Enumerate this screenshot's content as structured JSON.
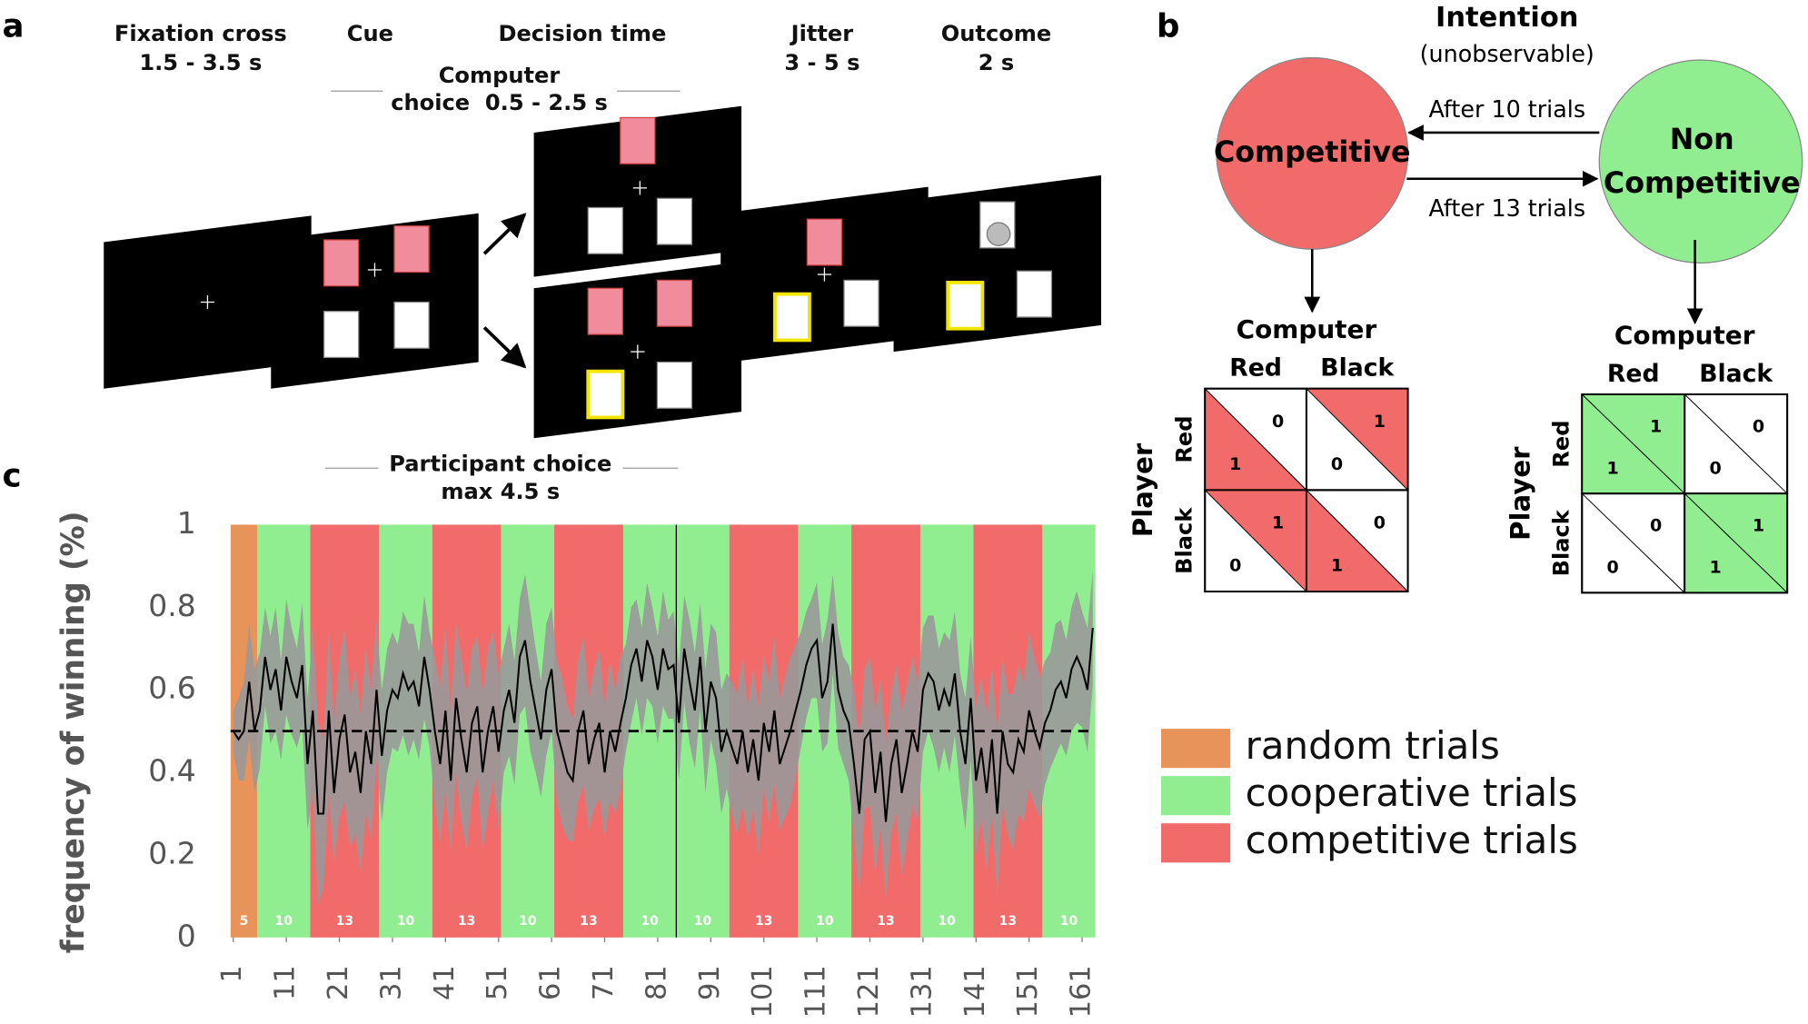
{
  "panel_a": {
    "label": "a",
    "phases": [
      {
        "name": "Fixation cross",
        "duration": "1.5 - 3.5 s"
      },
      {
        "name": "Cue"
      },
      {
        "name": "Decision time"
      },
      {
        "name": "Jitter",
        "duration": "3 - 5 s"
      },
      {
        "name": "Outcome",
        "duration": "2 s"
      }
    ],
    "computer_choice": [
      "Computer",
      "choice  0.5 - 2.5 s"
    ],
    "participant_choice": [
      "Participant choice",
      "max 4.5 s"
    ]
  },
  "panel_b": {
    "label": "b",
    "title": "Intention",
    "subtitle": "(unobservable)",
    "states": [
      [
        "Competitive"
      ],
      [
        "Non",
        "Competitive"
      ]
    ],
    "transitions": [
      "After 10 trials",
      "After 13 trials"
    ],
    "matrices": [
      {
        "col_title": "Computer",
        "cols": [
          "Red",
          "Black"
        ],
        "row_title": "Player",
        "rows": [
          "Red",
          "Black"
        ],
        "color": "#f26b6b",
        "cells": [
          [
            [
              0,
              1
            ],
            [
              1,
              0
            ]
          ],
          [
            [
              1,
              0
            ],
            [
              0,
              1
            ]
          ]
        ]
      },
      {
        "col_title": "Computer",
        "cols": [
          "Red",
          "Black"
        ],
        "row_title": "Player",
        "rows": [
          "Red",
          "Black"
        ],
        "color": "#90ee90",
        "cells": [
          [
            [
              1,
              1
            ],
            [
              0,
              0
            ]
          ],
          [
            [
              0,
              0
            ],
            [
              1,
              1
            ]
          ]
        ]
      }
    ]
  },
  "chart_data": {
    "type": "line",
    "panel_label": "c",
    "y_label": "frequency of winning (%)",
    "color": "#000000",
    "band_color": "#999999",
    "reference": 0.5,
    "legend": [
      {
        "name": "random trials",
        "color": "#e8935a"
      },
      {
        "name": "cooperative trials",
        "color": "#90ee90"
      },
      {
        "name": "competitive trials",
        "color": "#f26b6b"
      }
    ],
    "blocks": {
      "counts": [
        5,
        10,
        13,
        10,
        13,
        10,
        13,
        10,
        10,
        13,
        10,
        13,
        10,
        13,
        10
      ],
      "kinds": [
        0,
        1,
        2,
        1,
        2,
        1,
        2,
        1,
        1,
        2,
        1,
        2,
        1,
        2,
        1
      ]
    },
    "xlim": [
      0.5,
      163.5
    ],
    "xticks": [
      1,
      11,
      21,
      31,
      41,
      51,
      61,
      71,
      81,
      91,
      101,
      111,
      121,
      131,
      141,
      151,
      161
    ],
    "ylim": [
      0,
      1
    ],
    "yticks": [
      0,
      0.2,
      0.4,
      0.6,
      0.8,
      1
    ],
    "x": [
      1,
      2,
      3,
      4,
      5,
      6,
      7,
      8,
      9,
      10,
      11,
      12,
      13,
      14,
      15,
      16,
      17,
      18,
      19,
      20,
      21,
      22,
      23,
      24,
      25,
      26,
      27,
      28,
      29,
      30,
      31,
      32,
      33,
      34,
      35,
      36,
      37,
      38,
      39,
      40,
      41,
      42,
      43,
      44,
      45,
      46,
      47,
      48,
      49,
      50,
      51,
      52,
      53,
      54,
      55,
      56,
      57,
      58,
      59,
      60,
      61,
      62,
      63,
      64,
      65,
      66,
      67,
      68,
      69,
      70,
      71,
      72,
      73,
      74,
      75,
      76,
      77,
      78,
      79,
      80,
      81,
      82,
      83,
      84,
      85,
      86,
      87,
      88,
      89,
      90,
      91,
      92,
      93,
      94,
      95,
      96,
      97,
      98,
      99,
      100,
      101,
      102,
      103,
      104,
      105,
      106,
      107,
      108,
      109,
      110,
      111,
      112,
      113,
      114,
      115,
      116,
      117,
      118,
      119,
      120,
      121,
      122,
      123,
      124,
      125,
      126,
      127,
      128,
      129,
      130,
      131,
      132,
      133,
      134,
      135,
      136,
      137,
      138,
      139,
      140,
      141,
      142,
      143,
      144,
      145,
      146,
      147,
      148,
      149,
      150,
      151,
      152,
      153,
      154,
      155,
      156,
      157,
      158,
      159,
      160,
      161,
      162,
      163
    ],
    "values": [
      0.5,
      0.48,
      0.5,
      0.62,
      0.5,
      0.55,
      0.68,
      0.6,
      0.65,
      0.55,
      0.68,
      0.62,
      0.58,
      0.66,
      0.42,
      0.55,
      0.3,
      0.3,
      0.55,
      0.35,
      0.48,
      0.54,
      0.4,
      0.45,
      0.35,
      0.5,
      0.42,
      0.6,
      0.44,
      0.55,
      0.6,
      0.58,
      0.64,
      0.6,
      0.62,
      0.56,
      0.68,
      0.6,
      0.5,
      0.42,
      0.55,
      0.38,
      0.58,
      0.48,
      0.4,
      0.52,
      0.56,
      0.4,
      0.5,
      0.56,
      0.45,
      0.55,
      0.6,
      0.52,
      0.68,
      0.72,
      0.62,
      0.55,
      0.48,
      0.6,
      0.65,
      0.5,
      0.45,
      0.4,
      0.38,
      0.5,
      0.55,
      0.42,
      0.48,
      0.52,
      0.4,
      0.5,
      0.45,
      0.52,
      0.58,
      0.66,
      0.7,
      0.62,
      0.72,
      0.68,
      0.6,
      0.7,
      0.65,
      0.66,
      0.52,
      0.7,
      0.62,
      0.55,
      0.68,
      0.5,
      0.62,
      0.58,
      0.45,
      0.5,
      0.46,
      0.42,
      0.5,
      0.4,
      0.48,
      0.38,
      0.52,
      0.45,
      0.55,
      0.42,
      0.46,
      0.5,
      0.55,
      0.6,
      0.66,
      0.7,
      0.72,
      0.58,
      0.62,
      0.76,
      0.6,
      0.55,
      0.52,
      0.42,
      0.3,
      0.48,
      0.5,
      0.35,
      0.45,
      0.28,
      0.42,
      0.48,
      0.35,
      0.42,
      0.5,
      0.45,
      0.6,
      0.64,
      0.62,
      0.55,
      0.6,
      0.56,
      0.64,
      0.5,
      0.42,
      0.58,
      0.38,
      0.46,
      0.35,
      0.48,
      0.3,
      0.5,
      0.42,
      0.4,
      0.48,
      0.45,
      0.55,
      0.5,
      0.46,
      0.52,
      0.55,
      0.6,
      0.62,
      0.58,
      0.65,
      0.68,
      0.65,
      0.6,
      0.75
    ],
    "errors": [
      0.05,
      0.1,
      0.12,
      0.14,
      0.15,
      0.14,
      0.12,
      0.13,
      0.15,
      0.12,
      0.14,
      0.13,
      0.12,
      0.15,
      0.16,
      0.2,
      0.22,
      0.18,
      0.2,
      0.17,
      0.19,
      0.21,
      0.18,
      0.2,
      0.19,
      0.2,
      0.18,
      0.17,
      0.16,
      0.15,
      0.14,
      0.13,
      0.15,
      0.16,
      0.14,
      0.13,
      0.15,
      0.14,
      0.18,
      0.19,
      0.2,
      0.17,
      0.18,
      0.2,
      0.19,
      0.18,
      0.17,
      0.19,
      0.2,
      0.18,
      0.19,
      0.15,
      0.16,
      0.15,
      0.14,
      0.16,
      0.17,
      0.15,
      0.14,
      0.16,
      0.15,
      0.17,
      0.18,
      0.16,
      0.15,
      0.17,
      0.18,
      0.16,
      0.17,
      0.18,
      0.16,
      0.17,
      0.15,
      0.16,
      0.13,
      0.14,
      0.12,
      0.13,
      0.14,
      0.12,
      0.13,
      0.14,
      0.12,
      0.13,
      0.14,
      0.13,
      0.15,
      0.14,
      0.13,
      0.15,
      0.14,
      0.16,
      0.15,
      0.14,
      0.16,
      0.17,
      0.18,
      0.16,
      0.17,
      0.18,
      0.16,
      0.17,
      0.18,
      0.16,
      0.17,
      0.18,
      0.16,
      0.14,
      0.13,
      0.12,
      0.14,
      0.13,
      0.15,
      0.12,
      0.14,
      0.13,
      0.14,
      0.18,
      0.19,
      0.17,
      0.18,
      0.2,
      0.18,
      0.19,
      0.17,
      0.18,
      0.2,
      0.19,
      0.18,
      0.17,
      0.15,
      0.14,
      0.16,
      0.15,
      0.14,
      0.16,
      0.15,
      0.14,
      0.16,
      0.15,
      0.18,
      0.17,
      0.19,
      0.18,
      0.2,
      0.18,
      0.17,
      0.19,
      0.18,
      0.17,
      0.19,
      0.18,
      0.17,
      0.15,
      0.14,
      0.16,
      0.15,
      0.14,
      0.15,
      0.16,
      0.14,
      0.15,
      0.14
    ]
  }
}
